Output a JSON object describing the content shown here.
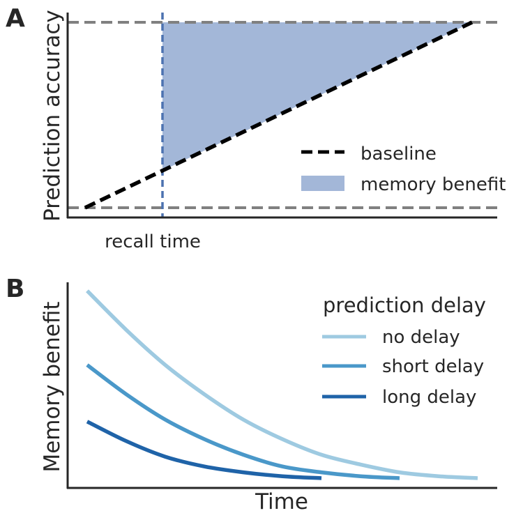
{
  "panels": [
    {
      "label": "A",
      "ylabel": "Prediction accuracy",
      "xtick_label": "recall time"
    },
    {
      "label": "B",
      "ylabel": "Memory benefit",
      "xlabel": "Time"
    }
  ],
  "chart_data": [
    {
      "type": "line",
      "title": "",
      "xlabel": "",
      "ylabel": "Prediction accuracy",
      "xlim": [
        0,
        1
      ],
      "ylim": [
        0,
        1
      ],
      "grid": false,
      "xticks": [
        {
          "x": 0.2,
          "label": "recall time"
        }
      ],
      "hlines": [
        {
          "y": 0.0,
          "style": "dashed",
          "color": "#808080"
        },
        {
          "y": 1.0,
          "style": "dashed",
          "color": "#808080"
        }
      ],
      "vlines": [
        {
          "x": 0.2,
          "style": "dashed",
          "color": "#4c72b0"
        }
      ],
      "series": [
        {
          "name": "baseline",
          "x": [
            0.0,
            1.0
          ],
          "y": [
            0.0,
            1.0
          ],
          "style": "dashed",
          "color": "#000000"
        }
      ],
      "fill": {
        "name": "memory benefit",
        "x": [
          0.2,
          1.0
        ],
        "lower": [
          0.2,
          1.0
        ],
        "upper": [
          1.0,
          1.0
        ],
        "color": "#a3b7d8"
      },
      "legend": {
        "position": "lower-right",
        "entries": [
          "baseline",
          "memory benefit"
        ]
      }
    },
    {
      "type": "line",
      "title": "",
      "xlabel": "Time",
      "ylabel": "Memory benefit",
      "xlim": [
        0,
        1
      ],
      "ylim": [
        0,
        1
      ],
      "grid": false,
      "series": [
        {
          "name": "no delay",
          "color": "#9ecae1",
          "x": [
            0,
            0.1,
            0.2,
            0.3,
            0.4,
            0.5,
            0.6,
            0.7,
            0.8,
            0.9,
            1.0
          ],
          "y": [
            0.96,
            0.76,
            0.58,
            0.43,
            0.3,
            0.2,
            0.12,
            0.07,
            0.03,
            0.01,
            0.0
          ]
        },
        {
          "name": "short delay",
          "color": "#4a98c9",
          "x": [
            0,
            0.1,
            0.2,
            0.3,
            0.4,
            0.5,
            0.6,
            0.7,
            0.8
          ],
          "y": [
            0.58,
            0.43,
            0.3,
            0.2,
            0.12,
            0.06,
            0.03,
            0.01,
            0.0
          ]
        },
        {
          "name": "long delay",
          "color": "#1f63a8",
          "x": [
            0,
            0.1,
            0.2,
            0.3,
            0.4,
            0.5,
            0.6
          ],
          "y": [
            0.29,
            0.19,
            0.11,
            0.06,
            0.03,
            0.01,
            0.0
          ]
        }
      ],
      "legend": {
        "title": "prediction delay",
        "position": "top-right",
        "entries": [
          "no delay",
          "short delay",
          "long delay"
        ]
      }
    }
  ]
}
